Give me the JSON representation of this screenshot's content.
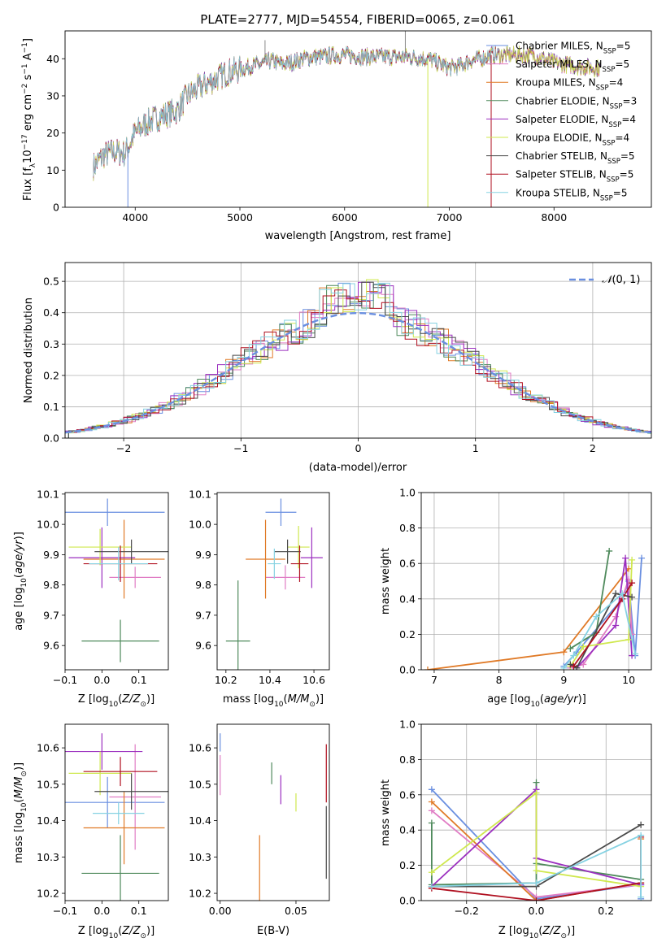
{
  "figure": {
    "title": "PLATE=2777, MJD=54554, FIBERID=0065, z=0.061"
  },
  "series_styles": [
    {
      "name": "Chabrier MILES",
      "nssp": "5",
      "color": "#6a8fe0"
    },
    {
      "name": "Salpeter MILES",
      "nssp": "5",
      "color": "#e07cc4"
    },
    {
      "name": "Kroupa MILES",
      "nssp": "4",
      "color": "#e07a27"
    },
    {
      "name": "Chabrier ELODIE",
      "nssp": "3",
      "color": "#4f8a5c"
    },
    {
      "name": "Salpeter ELODIE",
      "nssp": "4",
      "color": "#9b2fbf"
    },
    {
      "name": "Kroupa ELODIE",
      "nssp": "4",
      "color": "#cfe84e"
    },
    {
      "name": "Chabrier STELIB",
      "nssp": "5",
      "color": "#4a4a4a"
    },
    {
      "name": "Salpeter STELIB",
      "nssp": "5",
      "color": "#b01020"
    },
    {
      "name": "Kroupa STELIB",
      "nssp": "5",
      "color": "#86d2e2"
    }
  ],
  "chart_data": [
    {
      "id": "spectrum",
      "type": "line",
      "xlabel": "wavelength [Angstrom, rest frame]",
      "ylabel": "Flux [f_λ 10^-17 erg cm^-2 s^-1 A^-1]",
      "xlim": [
        3330,
        8930
      ],
      "ylim": [
        0,
        47.5
      ],
      "xticks": [
        4000,
        5000,
        6000,
        7000,
        8000
      ],
      "yticks": [
        0,
        10,
        20,
        30,
        40
      ],
      "legend_position": "right",
      "legend": [
        "Chabrier MILES, N_SSP=5",
        "Salpeter MILES, N_SSP=5",
        "Kroupa MILES, N_SSP=4",
        "Chabrier ELODIE, N_SSP=3",
        "Salpeter ELODIE, N_SSP=4",
        "Kroupa ELODIE, N_SSP=4",
        "Chabrier STELIB, N_SSP=5",
        "Salpeter STELIB, N_SSP=5",
        "Kroupa STELIB, N_SSP=5"
      ],
      "continuum_points": [
        [
          3600,
          11
        ],
        [
          3700,
          14
        ],
        [
          3800,
          15
        ],
        [
          3900,
          14.5
        ],
        [
          4000,
          20
        ],
        [
          4100,
          22.5
        ],
        [
          4200,
          24
        ],
        [
          4300,
          25
        ],
        [
          4400,
          26
        ],
        [
          4500,
          30
        ],
        [
          4600,
          32
        ],
        [
          4700,
          33.5
        ],
        [
          4800,
          35
        ],
        [
          4900,
          36.5
        ],
        [
          5000,
          37
        ],
        [
          5100,
          38
        ],
        [
          5200,
          38.5
        ],
        [
          5300,
          39.5
        ],
        [
          5400,
          38.5
        ],
        [
          5500,
          39
        ],
        [
          5600,
          40
        ],
        [
          5700,
          40.5
        ],
        [
          5800,
          40.5
        ],
        [
          5900,
          41
        ],
        [
          6000,
          41
        ],
        [
          6200,
          40.5
        ],
        [
          6400,
          40.5
        ],
        [
          6600,
          40.5
        ],
        [
          6800,
          40
        ],
        [
          7000,
          37.5
        ],
        [
          7100,
          38
        ],
        [
          7200,
          39.5
        ],
        [
          7300,
          40
        ],
        [
          7400,
          41
        ],
        [
          7500,
          41
        ],
        [
          7800,
          41
        ],
        [
          8000,
          39
        ],
        [
          8200,
          38
        ],
        [
          8400,
          37.5
        ]
      ],
      "spikes": [
        [
          3930,
          0
        ],
        [
          6795,
          0
        ],
        [
          7400,
          0
        ],
        [
          6580,
          47.5
        ],
        [
          5240,
          45
        ]
      ]
    },
    {
      "id": "residuals",
      "type": "bar",
      "xlabel": "(data-model)/error",
      "ylabel": "Normed distribution",
      "xlim": [
        -2.5,
        2.5
      ],
      "ylim": [
        0,
        0.56
      ],
      "xticks": [
        -2,
        -1,
        0,
        1,
        2
      ],
      "yticks": [
        0.0,
        0.1,
        0.2,
        0.3,
        0.4,
        0.5
      ],
      "grid": true,
      "bin_width": 0.1,
      "reference_curve": {
        "label": "N(0,1)",
        "mean": 0,
        "sigma": 1,
        "style": "dashed",
        "color": "#6a8fe0"
      },
      "legend_position": "top-right"
    },
    {
      "id": "age_vs_Z",
      "type": "scatter",
      "xlabel": "Z [log10(Z/Z_sun)]",
      "ylabel": "age [log10(age/yr)]",
      "xlim": [
        -0.1,
        0.18
      ],
      "ylim": [
        9.52,
        10.105
      ],
      "xticks": [
        -0.1,
        0.0,
        0.1
      ],
      "yticks": [
        9.6,
        9.7,
        9.8,
        9.9,
        10.0,
        10.1
      ],
      "points": [
        {
          "x": 0.015,
          "y": 10.04,
          "xerr": 0.155,
          "yerr": 0.045
        },
        {
          "x": 0.09,
          "y": 9.825,
          "xerr": 0.07,
          "yerr": 0.035
        },
        {
          "x": 0.06,
          "y": 9.885,
          "xerr": 0.11,
          "yerr": 0.13
        },
        {
          "x": 0.05,
          "y": 9.615,
          "xerr": 0.105,
          "yerr": 0.07
        },
        {
          "x": 0.0,
          "y": 9.89,
          "xerr": 0.09,
          "yerr": 0.1
        },
        {
          "x": -0.005,
          "y": 9.925,
          "xerr": 0.085,
          "yerr": 0.06
        },
        {
          "x": 0.08,
          "y": 9.91,
          "xerr": 0.1,
          "yerr": 0.04
        },
        {
          "x": 0.05,
          "y": 9.87,
          "xerr": 0.1,
          "yerr": 0.06
        },
        {
          "x": 0.045,
          "y": 9.87,
          "xerr": 0.08,
          "yerr": 0.055
        }
      ]
    },
    {
      "id": "age_vs_mass",
      "type": "scatter",
      "xlabel": "mass [log10(M/M_sun)]",
      "ylabel": "",
      "xlim": [
        10.16,
        10.67
      ],
      "ylim": [
        9.52,
        10.105
      ],
      "xticks": [
        10.2,
        10.4,
        10.6
      ],
      "yticks": [
        9.6,
        9.7,
        9.8,
        9.9,
        10.0,
        10.1
      ],
      "points": [
        {
          "x": 10.45,
          "y": 10.04,
          "xerr": 0.07,
          "yerr": 0.045
        },
        {
          "x": 10.47,
          "y": 9.825,
          "xerr": 0.09,
          "yerr": 0.04
        },
        {
          "x": 10.38,
          "y": 9.885,
          "xerr": 0.09,
          "yerr": 0.13
        },
        {
          "x": 10.255,
          "y": 9.615,
          "xerr": 0.055,
          "yerr": 0.2
        },
        {
          "x": 10.59,
          "y": 9.89,
          "xerr": 0.05,
          "yerr": 0.1
        },
        {
          "x": 10.53,
          "y": 9.925,
          "xerr": 0.05,
          "yerr": 0.07
        },
        {
          "x": 10.48,
          "y": 9.91,
          "xerr": 0.06,
          "yerr": 0.04
        },
        {
          "x": 10.535,
          "y": 9.87,
          "xerr": 0.04,
          "yerr": 0.06
        },
        {
          "x": 10.42,
          "y": 9.87,
          "xerr": 0.03,
          "yerr": 0.05
        }
      ]
    },
    {
      "id": "mass_weight_vs_age",
      "type": "line",
      "xlabel": "age [log10(age/yr)]",
      "ylabel": "mass weight",
      "xlim": [
        6.8,
        10.35
      ],
      "ylim": [
        0,
        1.0
      ],
      "xticks": [
        7,
        8,
        9,
        10
      ],
      "yticks": [
        0.0,
        0.2,
        0.4,
        0.6,
        0.8,
        1.0
      ],
      "grid": true,
      "series": [
        {
          "values": [
            [
              9.0,
              0.02
            ],
            [
              9.2,
              0.1
            ],
            [
              9.9,
              0.4
            ],
            [
              10.0,
              0.5
            ],
            [
              10.1,
              0.08
            ],
            [
              10.2,
              0.63
            ]
          ]
        },
        {
          "values": [
            [
              9.1,
              0.01
            ],
            [
              9.3,
              0.03
            ],
            [
              9.8,
              0.3
            ],
            [
              10.0,
              0.51
            ],
            [
              10.05,
              0.2
            ]
          ]
        },
        {
          "values": [
            [
              6.9,
              0.0
            ],
            [
              9.0,
              0.1
            ],
            [
              10.0,
              0.57
            ]
          ]
        },
        {
          "values": [
            [
              9.1,
              0.12
            ],
            [
              9.5,
              0.21
            ],
            [
              9.7,
              0.67
            ]
          ]
        },
        {
          "values": [
            [
              9.2,
              0.01
            ],
            [
              9.8,
              0.25
            ],
            [
              9.95,
              0.63
            ],
            [
              10.05,
              0.08
            ]
          ]
        },
        {
          "values": [
            [
              9.1,
              0.02
            ],
            [
              9.3,
              0.13
            ],
            [
              10.0,
              0.17
            ],
            [
              10.05,
              0.62
            ]
          ]
        },
        {
          "values": [
            [
              9.1,
              0.03
            ],
            [
              9.2,
              0.01
            ],
            [
              9.8,
              0.43
            ],
            [
              10.05,
              0.41
            ]
          ]
        },
        {
          "values": [
            [
              9.15,
              0.02
            ],
            [
              9.9,
              0.4
            ],
            [
              10.05,
              0.49
            ]
          ]
        },
        {
          "values": [
            [
              9.0,
              0.01
            ],
            [
              9.15,
              0.08
            ],
            [
              9.5,
              0.3
            ],
            [
              9.9,
              0.43
            ],
            [
              10.1,
              0.09
            ]
          ]
        }
      ]
    },
    {
      "id": "mass_vs_Z",
      "type": "scatter",
      "xlabel": "Z [log10(Z/Z_sun)]",
      "ylabel": "mass [log10(M/M_sun)]",
      "xlim": [
        -0.1,
        0.18
      ],
      "ylim": [
        10.18,
        10.665
      ],
      "xticks": [
        -0.1,
        0.0,
        0.1
      ],
      "yticks": [
        10.2,
        10.3,
        10.4,
        10.5,
        10.6
      ],
      "points": [
        {
          "x": 0.015,
          "y": 10.45,
          "xerr": 0.155,
          "yerr": 0.07
        },
        {
          "x": 0.09,
          "y": 10.465,
          "xerr": 0.07,
          "yerr": 0.145
        },
        {
          "x": 0.06,
          "y": 10.38,
          "xerr": 0.11,
          "yerr": 0.1
        },
        {
          "x": 0.05,
          "y": 10.255,
          "xerr": 0.105,
          "yerr": 0.105
        },
        {
          "x": 0.0,
          "y": 10.59,
          "xerr": 0.11,
          "yerr": 0.05
        },
        {
          "x": -0.005,
          "y": 10.53,
          "xerr": 0.085,
          "yerr": 0.06
        },
        {
          "x": 0.08,
          "y": 10.48,
          "xerr": 0.1,
          "yerr": 0.05
        },
        {
          "x": 0.05,
          "y": 10.535,
          "xerr": 0.1,
          "yerr": 0.04
        },
        {
          "x": 0.045,
          "y": 10.42,
          "xerr": 0.07,
          "yerr": 0.03
        }
      ]
    },
    {
      "id": "mass_vs_EBV",
      "type": "scatter",
      "xlabel": "E(B-V)",
      "ylabel": "",
      "xlim": [
        -0.002,
        0.072
      ],
      "ylim": [
        10.18,
        10.665
      ],
      "xticks": [
        0.0,
        0.05
      ],
      "yticks": [
        10.2,
        10.3,
        10.4,
        10.5,
        10.6
      ],
      "points": [
        {
          "x": 0.0,
          "y": 10.615,
          "yerr": 0.025
        },
        {
          "x": 0.0,
          "y": 10.525,
          "yerr": 0.055
        },
        {
          "x": 0.026,
          "y": 10.27,
          "yerr": 0.09
        },
        {
          "x": 0.034,
          "y": 10.53,
          "yerr": 0.03
        },
        {
          "x": 0.04,
          "y": 10.485,
          "yerr": 0.04
        },
        {
          "x": 0.05,
          "y": 10.45,
          "yerr": 0.025
        },
        {
          "x": 0.07,
          "y": 10.34,
          "yerr": 0.1
        },
        {
          "x": 0.07,
          "y": 10.53,
          "yerr": 0.08
        }
      ]
    },
    {
      "id": "mass_weight_vs_Z",
      "type": "line",
      "xlabel": "Z [log10(Z/Z_sun)]",
      "ylabel": "mass weight",
      "xlim": [
        -0.33,
        0.33
      ],
      "ylim": [
        0,
        1.0
      ],
      "xticks": [
        -0.2,
        0.0,
        0.2
      ],
      "yticks": [
        0.0,
        0.2,
        0.4,
        0.6,
        0.8,
        1.0
      ],
      "grid": true,
      "series": [
        {
          "values": [
            [
              -0.3,
              0.63
            ],
            [
              0.0,
              0.01
            ],
            [
              0.3,
              0.09
            ],
            [
              0.3,
              0.01
            ]
          ]
        },
        {
          "values": [
            [
              -0.3,
              0.51
            ],
            [
              0.0,
              0.02
            ],
            [
              0.3,
              0.09
            ]
          ]
        },
        {
          "values": [
            [
              -0.3,
              0.56
            ],
            [
              0.0,
              0.0
            ],
            [
              0.3,
              0.1
            ],
            [
              0.3,
              0.35
            ]
          ]
        },
        {
          "values": [
            [
              -0.3,
              0.44
            ],
            [
              -0.3,
              0.09
            ],
            [
              0.0,
              0.1
            ],
            [
              0.0,
              0.67
            ],
            [
              0.0,
              0.21
            ],
            [
              0.3,
              0.12
            ]
          ]
        },
        {
          "values": [
            [
              -0.3,
              0.08
            ],
            [
              0.0,
              0.63
            ],
            [
              0.0,
              0.24
            ],
            [
              0.3,
              0.09
            ]
          ]
        },
        {
          "values": [
            [
              -0.3,
              0.16
            ],
            [
              0.0,
              0.61
            ],
            [
              0.0,
              0.17
            ],
            [
              0.3,
              0.08
            ]
          ]
        },
        {
          "values": [
            [
              -0.3,
              0.08
            ],
            [
              0.0,
              0.08
            ],
            [
              0.3,
              0.43
            ]
          ]
        },
        {
          "values": [
            [
              -0.3,
              0.07
            ],
            [
              0.0,
              0.0
            ],
            [
              0.3,
              0.1
            ],
            [
              0.3,
              0.36
            ]
          ]
        },
        {
          "values": [
            [
              -0.3,
              0.08
            ],
            [
              0.0,
              0.1
            ],
            [
              0.3,
              0.37
            ],
            [
              0.3,
              0.02
            ]
          ]
        }
      ]
    }
  ]
}
